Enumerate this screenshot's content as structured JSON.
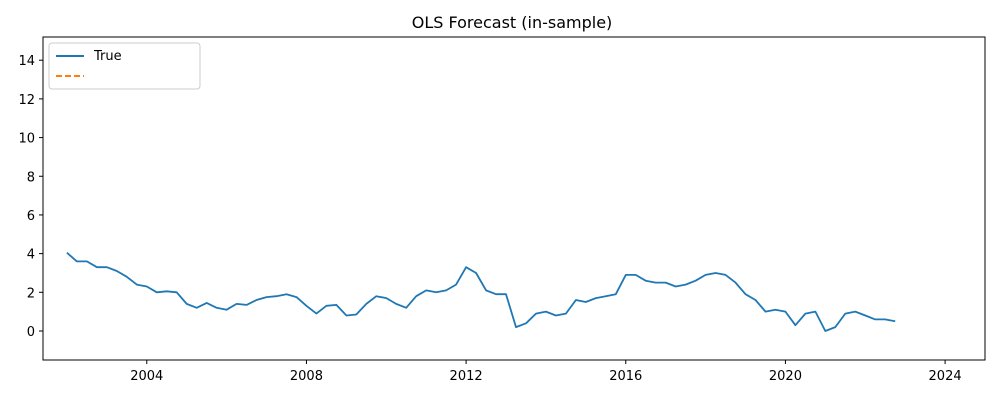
{
  "chart_data": {
    "type": "line",
    "title": "OLS Forecast (in-sample)",
    "xlabel": "",
    "ylabel": "",
    "xlim": [
      2001.4,
      2025.0
    ],
    "ylim": [
      -1.5,
      15.2
    ],
    "x_ticks": [
      2004,
      2008,
      2012,
      2016,
      2020,
      2024
    ],
    "y_ticks": [
      0,
      2,
      4,
      6,
      8,
      10,
      12,
      14
    ],
    "grid": false,
    "legend": "top-left",
    "series": [
      {
        "name": "True",
        "color": "#1f77b4",
        "style": "solid",
        "points": [
          [
            2002.0,
            4.05
          ],
          [
            2002.25,
            3.6
          ],
          [
            2002.5,
            3.6
          ],
          [
            2002.75,
            3.3
          ],
          [
            2003.0,
            3.3
          ],
          [
            2003.25,
            3.1
          ],
          [
            2003.5,
            2.8
          ],
          [
            2003.75,
            2.4
          ],
          [
            2004.0,
            2.3
          ],
          [
            2004.25,
            2.0
          ],
          [
            2004.5,
            2.05
          ],
          [
            2004.75,
            2.0
          ],
          [
            2005.0,
            1.4
          ],
          [
            2005.25,
            1.2
          ],
          [
            2005.5,
            1.45
          ],
          [
            2005.75,
            1.2
          ],
          [
            2006.0,
            1.1
          ],
          [
            2006.25,
            1.4
          ],
          [
            2006.5,
            1.35
          ],
          [
            2006.75,
            1.6
          ],
          [
            2007.0,
            1.75
          ],
          [
            2007.25,
            1.8
          ],
          [
            2007.5,
            1.9
          ],
          [
            2007.75,
            1.75
          ],
          [
            2008.0,
            1.3
          ],
          [
            2008.25,
            0.9
          ],
          [
            2008.5,
            1.3
          ],
          [
            2008.75,
            1.35
          ],
          [
            2009.0,
            0.8
          ],
          [
            2009.25,
            0.85
          ],
          [
            2009.5,
            1.4
          ],
          [
            2009.75,
            1.8
          ],
          [
            2010.0,
            1.7
          ],
          [
            2010.25,
            1.4
          ],
          [
            2010.5,
            1.2
          ],
          [
            2010.75,
            1.8
          ],
          [
            2011.0,
            2.1
          ],
          [
            2011.25,
            2.0
          ],
          [
            2011.5,
            2.1
          ],
          [
            2011.75,
            2.4
          ],
          [
            2012.0,
            3.3
          ],
          [
            2012.25,
            3.0
          ],
          [
            2012.5,
            2.1
          ],
          [
            2012.75,
            1.9
          ],
          [
            2013.0,
            1.9
          ],
          [
            2013.25,
            0.2
          ],
          [
            2013.5,
            0.4
          ],
          [
            2013.75,
            0.9
          ],
          [
            2014.0,
            1.0
          ],
          [
            2014.25,
            0.8
          ],
          [
            2014.5,
            0.9
          ],
          [
            2014.75,
            1.6
          ],
          [
            2015.0,
            1.5
          ],
          [
            2015.25,
            1.7
          ],
          [
            2015.5,
            1.8
          ],
          [
            2015.75,
            1.9
          ],
          [
            2016.0,
            2.9
          ],
          [
            2016.25,
            2.9
          ],
          [
            2016.5,
            2.6
          ],
          [
            2016.75,
            2.5
          ],
          [
            2017.0,
            2.5
          ],
          [
            2017.25,
            2.3
          ],
          [
            2017.5,
            2.4
          ],
          [
            2017.75,
            2.6
          ],
          [
            2018.0,
            2.9
          ],
          [
            2018.25,
            3.0
          ],
          [
            2018.5,
            2.9
          ],
          [
            2018.75,
            2.5
          ],
          [
            2019.0,
            1.9
          ],
          [
            2019.25,
            1.6
          ],
          [
            2019.5,
            1.0
          ],
          [
            2019.75,
            1.1
          ],
          [
            2020.0,
            1.0
          ],
          [
            2020.25,
            0.3
          ],
          [
            2020.5,
            0.9
          ],
          [
            2020.75,
            1.0
          ],
          [
            2021.0,
            0.0
          ],
          [
            2021.25,
            0.2
          ],
          [
            2021.5,
            0.9
          ],
          [
            2021.75,
            1.0
          ],
          [
            2022.0,
            0.8
          ],
          [
            2022.25,
            0.6
          ],
          [
            2022.5,
            0.6
          ],
          [
            2022.75,
            0.5
          ]
        ]
      }
    ]
  }
}
